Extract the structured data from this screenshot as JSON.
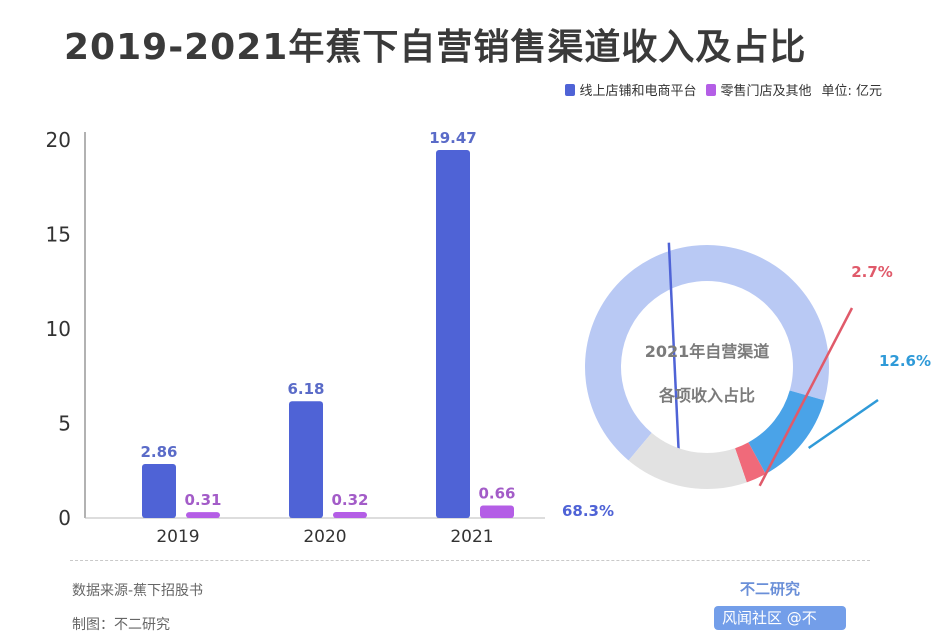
{
  "title": "2019-2021年蕉下自营销售渠道收入及占比",
  "legend": {
    "series1": "线上店铺和电商平台",
    "series2": "零售门店及其他",
    "unit": "单位: 亿元"
  },
  "colors": {
    "series1": "#4f63d6",
    "series2": "#b45ee6",
    "label1": "#5a6bc8",
    "label2": "#a35cc8"
  },
  "chart_data": [
    {
      "type": "bar",
      "title": "",
      "xlabel": "",
      "ylabel": "",
      "categories": [
        "2019",
        "2020",
        "2021"
      ],
      "series": [
        {
          "name": "线上店铺和电商平台",
          "values": [
            2.86,
            6.18,
            19.47
          ]
        },
        {
          "name": "零售门店及其他",
          "values": [
            0.31,
            0.32,
            0.66
          ]
        }
      ],
      "ylim": [
        0,
        20
      ],
      "yticks": [
        0,
        5,
        10,
        15,
        20
      ],
      "grid": false
    },
    {
      "type": "pie",
      "title": "2021年自营渠道各项收入占比",
      "center_text": [
        "2021年自营渠道",
        "各项收入占比"
      ],
      "slices": [
        {
          "label": "68.3%",
          "value": 68.3,
          "color": "#b9c9f4",
          "label_color": "#4f63d6"
        },
        {
          "label": "12.6%",
          "value": 12.6,
          "color": "#4aa3e8",
          "label_color": "#2f9ad8"
        },
        {
          "label": "2.7%",
          "value": 2.7,
          "color": "#f06a7a",
          "label_color": "#e05a6a"
        },
        {
          "label": "",
          "value": 16.4,
          "color": "#e2e2e2",
          "label_color": "#999999"
        }
      ]
    }
  ],
  "footer": {
    "source": "数据来源-蕉下招股书",
    "maker": "制图：不二研究",
    "brand": "不二研究",
    "watermark": "风闻社区 @不"
  }
}
